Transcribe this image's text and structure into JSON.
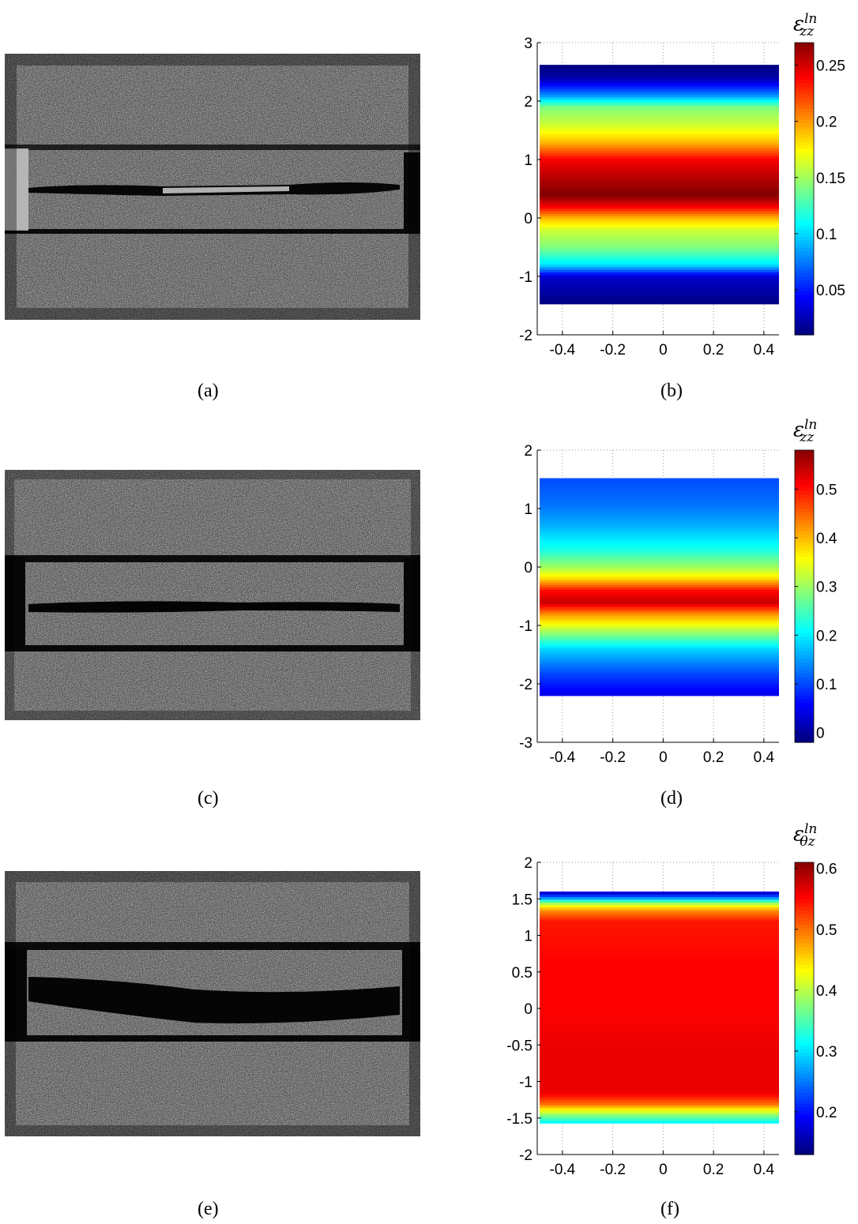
{
  "captions": [
    "(a)",
    "(b)",
    "(c)",
    "(d)",
    "(e)",
    "(f)"
  ],
  "colorbar_titles": [
    {
      "base": "ε",
      "sup": "ln",
      "sub": "zz"
    },
    {
      "base": "ε",
      "sup": "ln",
      "sub": "zz"
    },
    {
      "base": "ε",
      "sup": "ln",
      "sub": "θz"
    }
  ],
  "colors": {
    "photo_bg": "#2a2a2a",
    "gap": "#050505"
  },
  "chart_data": [
    {
      "type": "heatmap",
      "panel": "(b)",
      "xlim": [
        -0.5,
        0.46
      ],
      "ylim": [
        -2,
        3
      ],
      "xticks": [
        "-0.4",
        "-0.2",
        "0",
        "0.2",
        "0.4"
      ],
      "yticks": [
        "-2",
        "-1",
        "0",
        "1",
        "2",
        "3"
      ],
      "data_yrange": [
        -1.47,
        2.62
      ],
      "colorbar_ticks": [
        "0.05",
        "0.1",
        "0.15",
        "0.2",
        "0.25"
      ],
      "clim": [
        0.01,
        0.27
      ],
      "profile": [
        [
          -1.47,
          0.01
        ],
        [
          -1.0,
          0.03
        ],
        [
          -0.8,
          0.1
        ],
        [
          -0.5,
          0.14
        ],
        [
          -0.2,
          0.16
        ],
        [
          0.0,
          0.19
        ],
        [
          0.2,
          0.24
        ],
        [
          0.4,
          0.27
        ],
        [
          0.6,
          0.26
        ],
        [
          1.0,
          0.24
        ],
        [
          1.3,
          0.19
        ],
        [
          1.6,
          0.16
        ],
        [
          1.9,
          0.14
        ],
        [
          2.1,
          0.08
        ],
        [
          2.4,
          0.02
        ],
        [
          2.62,
          0.01
        ]
      ]
    },
    {
      "type": "heatmap",
      "panel": "(d)",
      "xlim": [
        -0.5,
        0.46
      ],
      "ylim": [
        -3,
        2
      ],
      "xticks": [
        "-0.4",
        "-0.2",
        "0",
        "0.2",
        "0.4"
      ],
      "yticks": [
        "-3",
        "-2",
        "-1",
        "0",
        "1",
        "2"
      ],
      "data_yrange": [
        -2.2,
        1.52
      ],
      "colorbar_ticks": [
        "0",
        "0.1",
        "0.2",
        "0.3",
        "0.4",
        "0.5"
      ],
      "clim": [
        -0.02,
        0.58
      ],
      "profile": [
        [
          -2.2,
          0.04
        ],
        [
          -1.8,
          0.1
        ],
        [
          -1.4,
          0.18
        ],
        [
          -1.1,
          0.3
        ],
        [
          -0.8,
          0.42
        ],
        [
          -0.6,
          0.54
        ],
        [
          -0.4,
          0.5
        ],
        [
          -0.2,
          0.38
        ],
        [
          0.0,
          0.3
        ],
        [
          0.3,
          0.22
        ],
        [
          0.7,
          0.16
        ],
        [
          1.1,
          0.12
        ],
        [
          1.52,
          0.1
        ]
      ]
    },
    {
      "type": "heatmap",
      "panel": "(f)",
      "xlim": [
        -0.5,
        0.46
      ],
      "ylim": [
        -2,
        2
      ],
      "xticks": [
        "-0.4",
        "-0.2",
        "0",
        "0.2",
        "0.4"
      ],
      "yticks": [
        "-2",
        "-1.5",
        "-1",
        "-0.5",
        "0",
        "0.5",
        "1",
        "1.5",
        "2"
      ],
      "data_yrange": [
        -1.57,
        1.6
      ],
      "colorbar_ticks": [
        "0.2",
        "0.3",
        "0.4",
        "0.5",
        "0.6"
      ],
      "clim": [
        0.13,
        0.61
      ],
      "profile": [
        [
          -1.57,
          0.3
        ],
        [
          -1.45,
          0.38
        ],
        [
          -1.3,
          0.5
        ],
        [
          -1.15,
          0.56
        ],
        [
          -0.6,
          0.56
        ],
        [
          0.0,
          0.55
        ],
        [
          0.6,
          0.55
        ],
        [
          1.2,
          0.54
        ],
        [
          1.35,
          0.48
        ],
        [
          1.45,
          0.38
        ],
        [
          1.52,
          0.25
        ],
        [
          1.6,
          0.15
        ]
      ]
    }
  ]
}
